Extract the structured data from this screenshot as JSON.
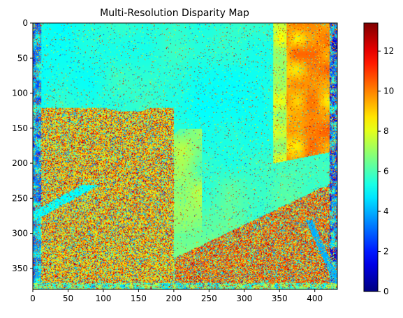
{
  "chart_data": {
    "type": "heatmap",
    "title": "Multi-Resolution Disparity Map",
    "xlabel": "",
    "ylabel": "",
    "image_width": 432,
    "image_height": 380,
    "xlim": [
      0,
      432
    ],
    "ylim": [
      380,
      0
    ],
    "xticks": [
      0,
      50,
      100,
      150,
      200,
      250,
      300,
      350,
      400
    ],
    "yticks": [
      0,
      50,
      100,
      150,
      200,
      250,
      300,
      350
    ],
    "colormap": "jet",
    "colorbar": {
      "min": 0,
      "max": 13.4,
      "ticks": [
        0,
        2,
        4,
        6,
        8,
        10,
        12
      ]
    },
    "regions": [
      {
        "name": "upper-center-flat",
        "value": 5.8
      },
      {
        "name": "upper-right-wall",
        "value": 10.5
      },
      {
        "name": "lower-left-texture",
        "value": 9.0
      },
      {
        "name": "lower-right-texture",
        "value": 10.5
      },
      {
        "name": "center-wedge",
        "value": 7.5
      }
    ],
    "grid": false
  }
}
